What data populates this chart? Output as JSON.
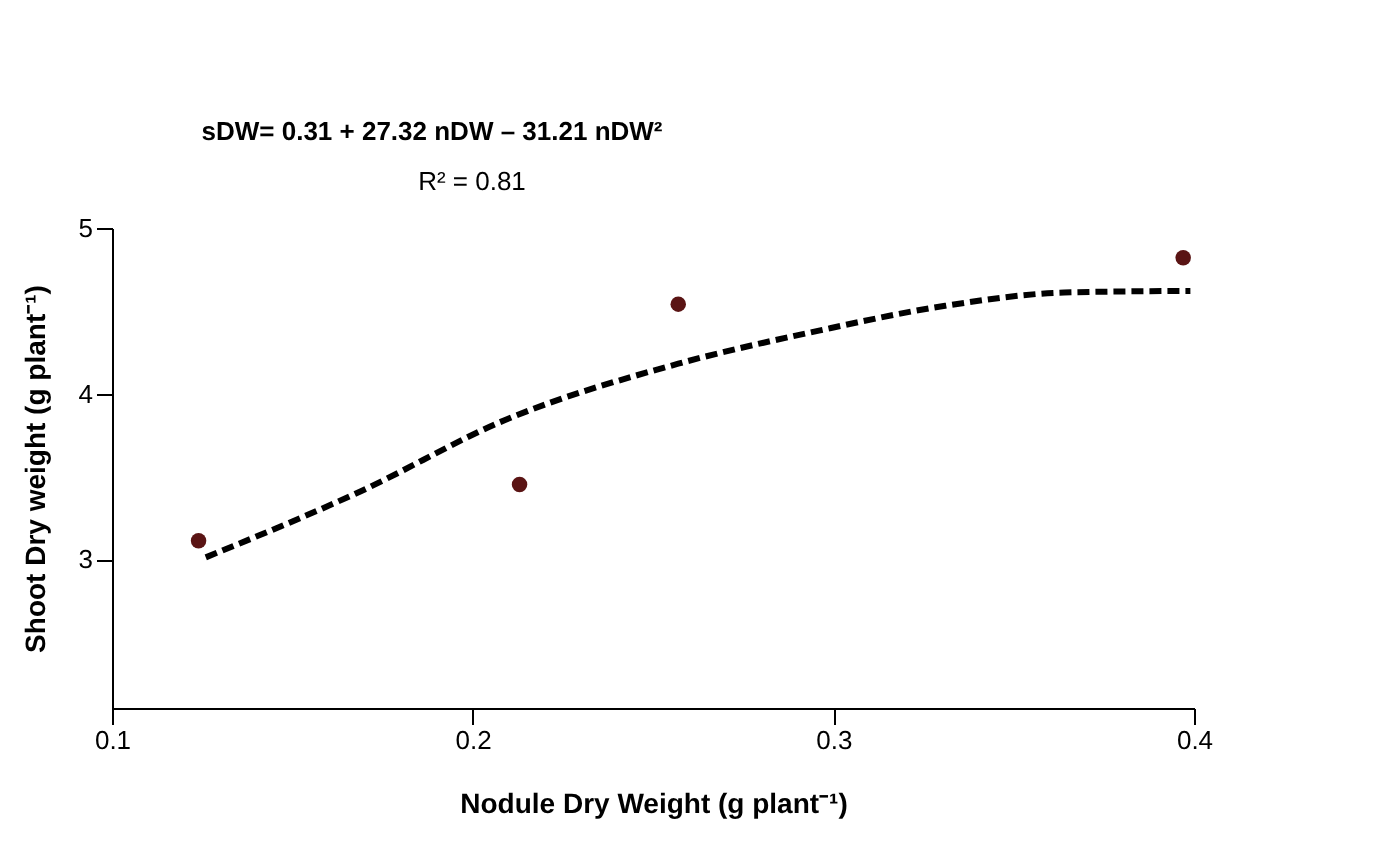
{
  "chart_data": {
    "type": "scatter",
    "xlabel": "Nodule Dry Weight (g plant⁻¹)",
    "ylabel": "Shoot Dry weight (g plant⁻¹)",
    "annotations": [
      "sDW= 0.31 + 27.32 nDW – 31.21 nDW²",
      "R² = 0.81"
    ],
    "xlim": [
      0.1,
      0.4
    ],
    "xticks": [
      0.1,
      0.2,
      0.3,
      0.4
    ],
    "ylim": [
      2.1,
      5
    ],
    "yticks": [
      3,
      4,
      5
    ],
    "grid": false,
    "series": [
      {
        "color": "#5a1414",
        "marker": "circle",
        "x": [
          0.124,
          0.213,
          0.257,
          0.397
        ],
        "values": [
          3.11,
          3.45,
          4.54,
          4.82
        ]
      },
      {
        "type": "line",
        "color": "#000000",
        "line_style": "dashed",
        "marker": "none",
        "x": [
          0.126,
          0.169,
          0.209,
          0.257,
          0.296,
          0.331,
          0.364,
          0.399
        ],
        "values": [
          3.01,
          3.41,
          3.84,
          4.18,
          4.38,
          4.53,
          4.61,
          4.62
        ]
      }
    ]
  }
}
